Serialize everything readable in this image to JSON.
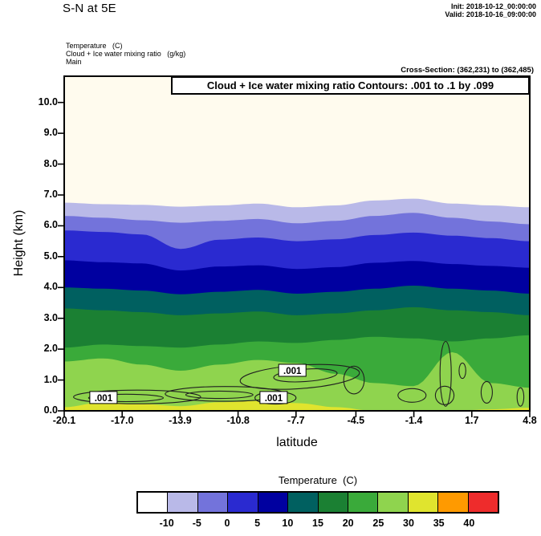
{
  "header": {
    "title": "S-N at 5E",
    "init": "Init: 2018-10-12_00:00:00",
    "valid": "Valid: 2018-10-16_09:00:00",
    "field1": "Temperature   (C)",
    "field2": "Cloud + Ice water mixing ratio   (g/kg)",
    "field3": "Main",
    "cross_section": "Cross-Section: (362,231) to (362,485)"
  },
  "plot": {
    "inner_title": "Cloud + Ice water mixing ratio Contours: .001 to .1 by .099",
    "xlabel": "latitude",
    "ylabel": "Height (km)"
  },
  "colorbar": {
    "title": "Temperature  (C)",
    "tick_labels": [
      "-10",
      "-5",
      "0",
      "5",
      "10",
      "15",
      "20",
      "25",
      "30",
      "35",
      "40"
    ],
    "colors": [
      "#ffffff",
      "#b9b9e8",
      "#7373db",
      "#2a2ad0",
      "#0000a0",
      "#006060",
      "#1b8033",
      "#3aaa3a",
      "#8fd44e",
      "#e0e42e",
      "#ff9a00",
      "#ee2c2c"
    ]
  },
  "chart_data": {
    "type": "heatmap",
    "subtype": "filled-contour-vertical-cross-section",
    "title": "Cloud + Ice water mixing ratio Contours: .001 to .1 by .099",
    "xlabel": "latitude",
    "ylabel": "Height (km)",
    "xlim": [
      -20.1,
      4.8
    ],
    "ylim": [
      0,
      10.85
    ],
    "xticks": [
      -20.1,
      -17.0,
      -13.9,
      -10.8,
      -7.7,
      -4.5,
      -1.4,
      1.7,
      4.8
    ],
    "yticks": [
      0,
      1,
      2,
      3,
      4,
      5,
      6,
      7,
      8,
      9,
      10
    ],
    "background_color": "#fffbee",
    "temperature_band_edges_c": [
      -10,
      -5,
      0,
      5,
      10,
      15,
      20,
      25,
      30,
      35,
      40
    ],
    "isotherms": [
      {
        "temp_c": -10,
        "heights_km": [
          6.75,
          6.7,
          6.68,
          6.62,
          6.66,
          6.72,
          6.6,
          6.66,
          6.82,
          6.88,
          6.72,
          6.66,
          6.6
        ]
      },
      {
        "temp_c": -5,
        "heights_km": [
          6.32,
          6.26,
          6.18,
          6.1,
          6.16,
          6.22,
          6.08,
          6.16,
          6.32,
          6.42,
          6.26,
          6.14,
          6.05
        ]
      },
      {
        "temp_c": 0,
        "heights_km": [
          5.85,
          5.8,
          5.72,
          5.25,
          5.55,
          5.62,
          5.5,
          5.56,
          5.7,
          5.78,
          5.68,
          5.6,
          5.5
        ]
      },
      {
        "temp_c": 5,
        "heights_km": [
          4.88,
          4.82,
          4.78,
          4.55,
          4.68,
          4.72,
          4.6,
          4.66,
          4.8,
          4.86,
          4.76,
          4.7,
          4.64
        ]
      },
      {
        "temp_c": 10,
        "heights_km": [
          4.0,
          3.96,
          3.9,
          3.78,
          3.86,
          3.92,
          3.8,
          3.86,
          3.96,
          4.06,
          3.96,
          3.9,
          3.8
        ]
      },
      {
        "temp_c": 15,
        "heights_km": [
          3.32,
          3.26,
          3.2,
          3.1,
          3.16,
          3.22,
          3.1,
          3.16,
          3.26,
          3.36,
          3.26,
          3.2,
          3.1
        ]
      },
      {
        "temp_c": 20,
        "heights_km": [
          2.05,
          2.15,
          2.1,
          2.05,
          2.15,
          2.25,
          2.2,
          2.3,
          2.4,
          2.35,
          2.25,
          2.35,
          2.45
        ]
      },
      {
        "temp_c": 25,
        "heights_km": [
          1.6,
          1.7,
          1.5,
          1.3,
          1.5,
          1.65,
          1.55,
          1.2,
          0.9,
          0.8,
          1.9,
          0.9,
          0.75
        ]
      },
      {
        "temp_c": 30,
        "heights_km": [
          0.12,
          0.28,
          0.22,
          0.15,
          0.28,
          0.32,
          0.25,
          0.12,
          0.0,
          0.0,
          0.0,
          0.05,
          0.1
        ]
      }
    ],
    "cloud_contours": {
      "levels_g_per_kg": [
        0.001,
        0.1
      ],
      "contour_spec": ".001 to .1 by .099",
      "labels": [
        {
          "text": ".001",
          "lat": -18.0,
          "km": 0.42
        },
        {
          "text": ".001",
          "lat": -7.9,
          "km": 1.3
        },
        {
          "text": ".001",
          "lat": -8.9,
          "km": 0.42
        }
      ],
      "blobs": [
        {
          "lat": -16.2,
          "km": 0.45,
          "rlat": 3.4,
          "rkm": 0.22,
          "rot": 0
        },
        {
          "lat": -16.8,
          "km": 0.42,
          "rlat": 2.0,
          "rkm": 0.12,
          "rot": 0
        },
        {
          "lat": -11.5,
          "km": 0.55,
          "rlat": 3.2,
          "rkm": 0.24,
          "rot": 0
        },
        {
          "lat": -11.8,
          "km": 0.52,
          "rlat": 1.8,
          "rkm": 0.12,
          "rot": 0
        },
        {
          "lat": -7.5,
          "km": 1.1,
          "rlat": 3.2,
          "rkm": 0.38,
          "rot": -4
        },
        {
          "lat": -7.2,
          "km": 1.15,
          "rlat": 1.7,
          "rkm": 0.2,
          "rot": -4
        },
        {
          "lat": -8.8,
          "km": 0.42,
          "rlat": 1.1,
          "rkm": 0.2,
          "rot": 0
        },
        {
          "lat": -4.6,
          "km": 1.0,
          "rlat": 0.55,
          "rkm": 0.45,
          "rot": 0
        },
        {
          "lat": -1.5,
          "km": 0.5,
          "rlat": 0.75,
          "rkm": 0.22,
          "rot": 0
        },
        {
          "lat": 0.3,
          "km": 1.2,
          "rlat": 0.3,
          "rkm": 1.05,
          "rot": 0
        },
        {
          "lat": 0.25,
          "km": 0.5,
          "rlat": 0.5,
          "rkm": 0.3,
          "rot": 0
        },
        {
          "lat": 1.2,
          "km": 1.3,
          "rlat": 0.18,
          "rkm": 0.25,
          "rot": 0
        },
        {
          "lat": 2.5,
          "km": 0.6,
          "rlat": 0.3,
          "rkm": 0.35,
          "rot": 0
        },
        {
          "lat": 4.3,
          "km": 0.45,
          "rlat": 0.18,
          "rkm": 0.3,
          "rot": 0
        }
      ]
    }
  }
}
